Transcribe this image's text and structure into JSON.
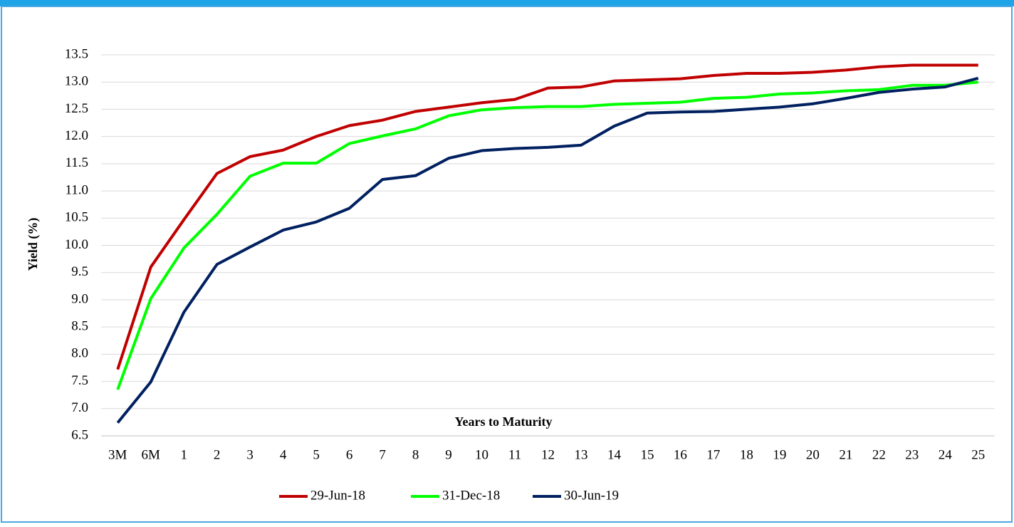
{
  "chart_data": {
    "type": "line",
    "y_label": "Yield (%)",
    "x_label": "Years to Maturity",
    "categories": [
      "3M",
      "6M",
      "1",
      "2",
      "3",
      "4",
      "5",
      "6",
      "7",
      "8",
      "9",
      "10",
      "11",
      "12",
      "13",
      "14",
      "15",
      "16",
      "17",
      "18",
      "19",
      "20",
      "21",
      "22",
      "23",
      "24",
      "25"
    ],
    "series": [
      {
        "name": "29-Jun-18",
        "color": "#c00000",
        "values": [
          7.72,
          9.6,
          10.47,
          11.32,
          11.63,
          11.75,
          12.0,
          12.2,
          12.3,
          12.46,
          12.54,
          12.62,
          12.68,
          12.89,
          12.91,
          13.02,
          13.04,
          13.06,
          13.12,
          13.16,
          13.16,
          13.18,
          13.22,
          13.28,
          13.31,
          13.31,
          13.31
        ]
      },
      {
        "name": "31-Dec-18",
        "color": "#00ff00",
        "values": [
          7.35,
          9.02,
          9.95,
          10.57,
          11.27,
          11.51,
          11.51,
          11.87,
          12.01,
          12.14,
          12.38,
          12.49,
          12.53,
          12.55,
          12.55,
          12.59,
          12.61,
          12.63,
          12.7,
          12.72,
          12.78,
          12.8,
          12.84,
          12.86,
          12.94,
          12.94,
          13.0
        ]
      },
      {
        "name": "30-Jun-19",
        "color": "#002060",
        "values": [
          6.74,
          7.49,
          8.77,
          9.65,
          9.97,
          10.28,
          10.43,
          10.68,
          11.21,
          11.28,
          11.6,
          11.74,
          11.78,
          11.8,
          11.84,
          12.19,
          12.43,
          12.45,
          12.46,
          12.5,
          12.54,
          12.6,
          12.7,
          12.81,
          12.87,
          12.91,
          13.07
        ]
      }
    ],
    "ylim": [
      6.5,
      13.5
    ],
    "yticks": [
      6.5,
      {
        "value": 7,
        "label": "7.0"
      },
      7.5,
      {
        "value": 8,
        "label": "8.0"
      },
      8.5,
      {
        "value": 9,
        "label": "9.0"
      },
      9.5,
      {
        "value": 10,
        "label": "10.0"
      },
      10.5,
      {
        "value": 11,
        "label": "11.0"
      },
      11.5,
      {
        "value": 12,
        "label": "12.0"
      },
      12.5,
      {
        "value": 13,
        "label": "13.0"
      },
      13.5
    ],
    "grid": true,
    "legend": "bottom"
  }
}
